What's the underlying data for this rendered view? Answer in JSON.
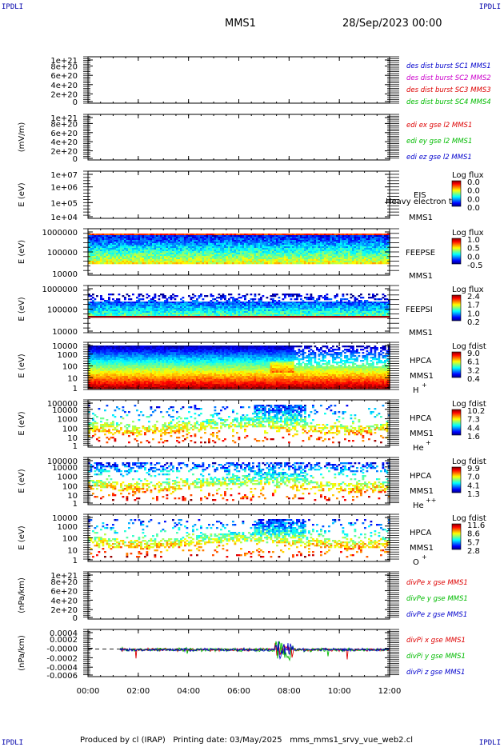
{
  "corners": {
    "tl": "IPDLI",
    "tr": "IPDLI",
    "bl": "IPDLI",
    "br": "IPDLI"
  },
  "header": {
    "spacecraft": "MMS1",
    "date": "28/Sep/2023 00:00"
  },
  "footer": {
    "text": "Produced by cl (IRAP)   Printing date: 03/May/2025   mms_mms1_srvy_vue_web2.cl"
  },
  "colors": {
    "red": "#dd0000",
    "green": "#00bb00",
    "blue": "#0000cc",
    "magenta": "#cc00cc"
  },
  "chart_data": {
    "type": "multi-panel timeseries",
    "x_ticks": [
      "00:00",
      "02:00",
      "04:00",
      "06:00",
      "08:00",
      "10:00",
      "12:00"
    ],
    "xlim": [
      "00:00",
      "12:00"
    ],
    "panels": [
      {
        "id": "p1",
        "ylabel": "",
        "ticks": [
          "1e+21",
          "8e+20",
          "6e+20",
          "4e+20",
          "2e+20",
          "0"
        ],
        "ylim": [
          0,
          1.1e+21
        ],
        "legend": [
          {
            "text": "des dist burst SC1 MMS1",
            "color": "#0000cc"
          },
          {
            "text": "des dist burst SC2 MMS2",
            "color": "#cc00cc"
          },
          {
            "text": "des dist burst SC3 MMS3",
            "color": "#dd0000"
          },
          {
            "text": "des dist burst SC4 MMS4",
            "color": "#00bb00"
          }
        ]
      },
      {
        "id": "p2",
        "ylabel": "(mV/m)",
        "ticks": [
          "1e+21",
          "8e+20",
          "6e+20",
          "4e+20",
          "2e+20",
          "0"
        ],
        "ylim": [
          0,
          1.1e+21
        ],
        "legend": [
          {
            "text": "edi ex gse l2 MMS1",
            "color": "#dd0000"
          },
          {
            "text": "edi ey gse l2 MMS1",
            "color": "#00bb00"
          },
          {
            "text": "edi ez gse l2 MMS1",
            "color": "#0000cc"
          }
        ]
      },
      {
        "id": "p3",
        "ylabel": "E (eV)",
        "ticks": [
          "1e+07",
          "1e+06",
          "1e+05",
          "1e+04"
        ],
        "labels": [
          "EIS",
          "MMS1"
        ],
        "overlay": "Heavy electron to",
        "cbar_title": "Log flux",
        "cbar_ticks": [
          "0.0",
          "0.0",
          "0.0",
          "0.0"
        ]
      },
      {
        "id": "p4",
        "ylabel": "E (eV)",
        "ticks": [
          "1000000",
          "100000",
          "10000"
        ],
        "labels": [
          "FEEPSE",
          "MMS1"
        ],
        "cbar_title": "Log flux",
        "cbar_ticks": [
          "1.0",
          "0.5",
          "0.0",
          "-0.5"
        ]
      },
      {
        "id": "p5",
        "ylabel": "E (eV)",
        "ticks": [
          "1000000",
          "100000",
          "10000"
        ],
        "labels": [
          "FEEPSI",
          "MMS1"
        ],
        "cbar_title": "Log flux",
        "cbar_ticks": [
          "2.4",
          "1.7",
          "1.0",
          "0.2"
        ]
      },
      {
        "id": "p6",
        "ylabel": "E (eV)",
        "ticks": [
          "10000",
          "1000",
          "100",
          "10",
          "1"
        ],
        "labels": [
          "HPCA",
          "MMS1",
          "H"
        ],
        "species_sup": "+",
        "cbar_title": "Log fdist",
        "cbar_ticks": [
          "9.0",
          "6.1",
          "3.2",
          "0.4"
        ]
      },
      {
        "id": "p7",
        "ylabel": "E (eV)",
        "ticks": [
          "100000",
          "10000",
          "1000",
          "100",
          "10",
          "1"
        ],
        "labels": [
          "HPCA",
          "MMS1",
          "He"
        ],
        "species_sup": "+",
        "cbar_title": "Log fdist",
        "cbar_ticks": [
          "10.2",
          "7.3",
          "4.4",
          "1.6"
        ]
      },
      {
        "id": "p8",
        "ylabel": "E (eV)",
        "ticks": [
          "100000",
          "10000",
          "1000",
          "100",
          "10",
          "1"
        ],
        "labels": [
          "HPCA",
          "MMS1",
          "He"
        ],
        "species_sup": "++",
        "cbar_title": "Log fdist",
        "cbar_ticks": [
          "9.9",
          "7.0",
          "4.1",
          "1.3"
        ]
      },
      {
        "id": "p9",
        "ylabel": "E (eV)",
        "ticks": [
          "10000",
          "1000",
          "100",
          "10",
          "1"
        ],
        "labels": [
          "HPCA",
          "MMS1",
          "O"
        ],
        "species_sup": "+",
        "cbar_title": "Log fdist",
        "cbar_ticks": [
          "11.6",
          "8.6",
          "5.7",
          "2.8"
        ]
      },
      {
        "id": "p10",
        "ylabel": "(nPa/km)",
        "ticks": [
          "1e+21",
          "8e+20",
          "6e+20",
          "4e+20",
          "2e+20",
          "0"
        ],
        "ylim": [
          0,
          1.1e+21
        ],
        "legend": [
          {
            "text": "divPe x gse MMS1",
            "color": "#dd0000"
          },
          {
            "text": "divPe y gse MMS1",
            "color": "#00bb00"
          },
          {
            "text": "divPe z gse MMS1",
            "color": "#0000cc"
          }
        ]
      },
      {
        "id": "p11",
        "ylabel": "(nPa/km)",
        "ticks": [
          "0.0004",
          "0.0002",
          "-0.0000",
          "-0.0002",
          "-0.0004",
          "-0.0006"
        ],
        "ylim": [
          -0.0007,
          0.0005
        ],
        "legend": [
          {
            "text": "divPi x gse MMS1",
            "color": "#dd0000"
          },
          {
            "text": "divPi y gse MMS1",
            "color": "#00bb00"
          },
          {
            "text": "divPi z gse MMS1",
            "color": "#0000cc"
          }
        ]
      }
    ]
  }
}
